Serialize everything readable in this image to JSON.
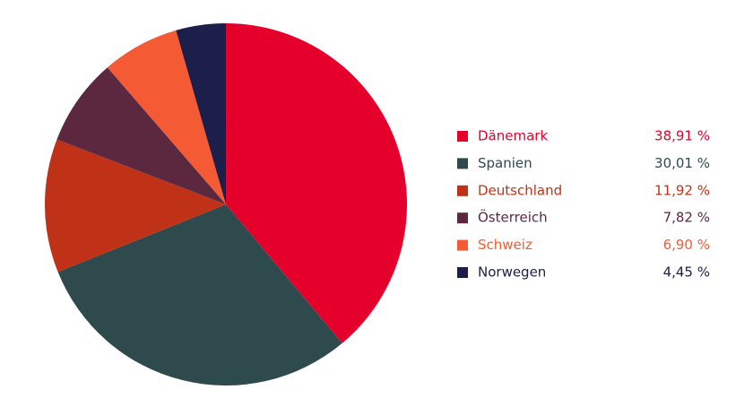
{
  "chart_data": {
    "type": "pie",
    "categories": [
      "Dänemark",
      "Spanien",
      "Deutschland",
      "Österreich",
      "Schweiz",
      "Norwegen"
    ],
    "values": [
      38.91,
      30.01,
      11.92,
      7.82,
      6.9,
      4.45
    ],
    "value_labels": [
      "38,91 %",
      "30,01 %",
      "11,92 %",
      "7,82 %",
      "6,90 %",
      "4,45 %"
    ],
    "colors": [
      "#e4002b",
      "#2f4a4d",
      "#c03217",
      "#5c2840",
      "#f45b35",
      "#1b1f4a"
    ]
  }
}
